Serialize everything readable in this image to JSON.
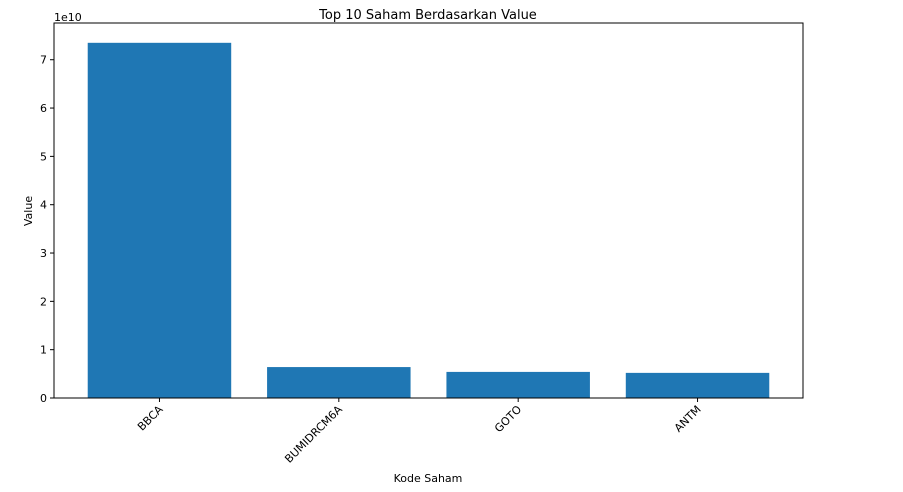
{
  "chart_data": {
    "type": "bar",
    "title": "Top 10 Saham Berdasarkan Value",
    "x_label": "Kode Saham",
    "y_label": "Value",
    "y_offset_label": "1e10",
    "categories": [
      "BBCA",
      "BUMIDRCM6A",
      "GOTO",
      "ANTM"
    ],
    "values": [
      7.35,
      0.64,
      0.54,
      0.52
    ],
    "color": "#1f77b4",
    "ylim": [
      0,
      7.76
    ],
    "yticks": [
      0,
      1,
      2,
      3,
      4,
      5,
      6,
      7
    ],
    "grid": false
  }
}
